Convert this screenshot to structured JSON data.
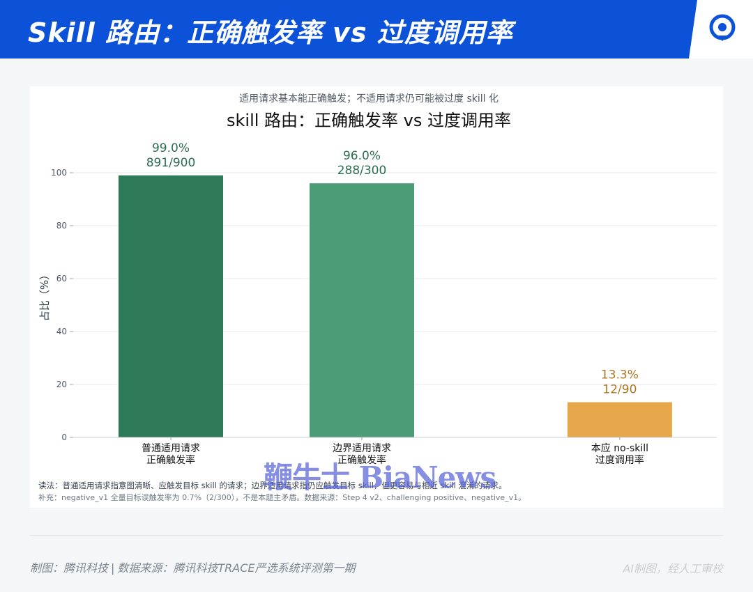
{
  "header": {
    "title": "Skill 路由：正确触发率 vs 过度调用率",
    "logo_icon": "tencent-tech-logo-icon"
  },
  "colors": {
    "header_bg": "#0b52d9",
    "bar_correct": "#2e7a58",
    "bar_boundary": "#4c9c75",
    "bar_over": "#e6a64a",
    "label_green": "#2c6e4f",
    "label_orange": "#b07620"
  },
  "chart_data": {
    "type": "bar",
    "subtitle": "适用请求基本能正确触发；不适用请求仍可能被过度 skill 化",
    "title": "skill 路由：正确触发率 vs 过度调用率",
    "ylabel": "占比（%）",
    "xlabel": "",
    "ylim": [
      0,
      100
    ],
    "yticks": [
      0,
      20,
      40,
      60,
      80,
      100
    ],
    "grid": true,
    "categories": [
      {
        "line1": "普通适用请求",
        "line2": "正确触发率",
        "x": 0
      },
      {
        "line1": "边界适用请求",
        "line2": "正确触发率",
        "x": 1
      },
      {
        "line1": "本应 no-skill",
        "line2": "过度调用率",
        "x": 2.35
      }
    ],
    "values": [
      99.0,
      96.0,
      13.3
    ],
    "value_labels": [
      "99.0%",
      "96.0%",
      "13.3%"
    ],
    "count_labels": [
      "891/900",
      "288/300",
      "12/90"
    ],
    "note1": "读法：普通适用请求指意图清晰、应触发目标 skill 的请求；边界适用请求指仍应触发目标 skill，但更容易与相近 skill 混淆的请求。",
    "note2": "补充：negative_v1 全量目标误触发率为 0.7%（2/300），不是本题主矛盾。数据来源：Step 4 v2、challenging positive、negative_v1。"
  },
  "footer": {
    "left_a": "制图：腾讯科技",
    "left_sep": "|",
    "left_b": "数据来源：腾讯科技TRACE严选系统评测第一期",
    "right": "AI制图，经人工审校"
  },
  "watermark": "鞭牛士 BiaNews"
}
